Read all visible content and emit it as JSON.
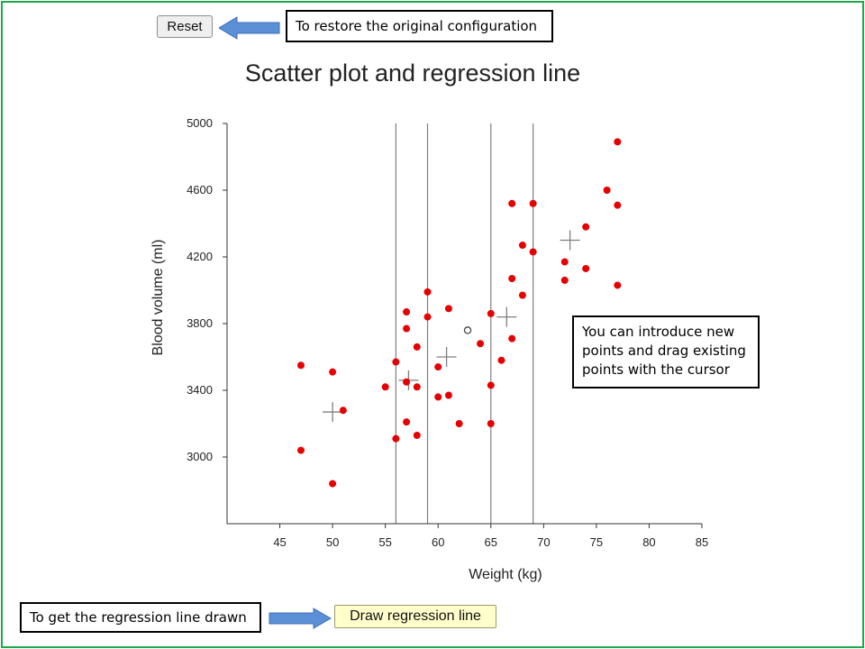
{
  "controls": {
    "reset_label": "Reset",
    "draw_regression_label": "Draw regression line"
  },
  "callouts": {
    "reset": "To restore the original configuration",
    "points": "You can introduce new points and drag existing points with the cursor",
    "regression": "To get the regression line drawn"
  },
  "colors": {
    "frame": "#1fa84a",
    "arrow": "#5b8fd6",
    "point": "#e60000",
    "marker": "#7f7f7f"
  },
  "chart_data": {
    "type": "scatter",
    "title": "Scatter plot and regression line",
    "xlabel": "Weight (kg)",
    "ylabel": "Blood volume (ml)",
    "xlim": [
      40,
      85
    ],
    "ylim": [
      2600,
      5000
    ],
    "xticks": [
      45,
      50,
      55,
      60,
      65,
      70,
      75,
      80,
      85
    ],
    "yticks": [
      3000,
      3400,
      3800,
      4200,
      4600,
      5000
    ],
    "grid": false,
    "points": [
      {
        "x": 47,
        "y": 3550
      },
      {
        "x": 47,
        "y": 3040
      },
      {
        "x": 50,
        "y": 3510
      },
      {
        "x": 50,
        "y": 2840
      },
      {
        "x": 51,
        "y": 3280
      },
      {
        "x": 55,
        "y": 3420
      },
      {
        "x": 56,
        "y": 3570
      },
      {
        "x": 56,
        "y": 3110
      },
      {
        "x": 57,
        "y": 3870
      },
      {
        "x": 57,
        "y": 3770
      },
      {
        "x": 57,
        "y": 3450
      },
      {
        "x": 57,
        "y": 3210
      },
      {
        "x": 58,
        "y": 3660
      },
      {
        "x": 58,
        "y": 3420
      },
      {
        "x": 58,
        "y": 3130
      },
      {
        "x": 59,
        "y": 3990
      },
      {
        "x": 59,
        "y": 3840
      },
      {
        "x": 60,
        "y": 3540
      },
      {
        "x": 60,
        "y": 3360
      },
      {
        "x": 61,
        "y": 3890
      },
      {
        "x": 61,
        "y": 3370
      },
      {
        "x": 62,
        "y": 3200
      },
      {
        "x": 64,
        "y": 3680
      },
      {
        "x": 65,
        "y": 3860
      },
      {
        "x": 65,
        "y": 3430
      },
      {
        "x": 65,
        "y": 3200
      },
      {
        "x": 66,
        "y": 3580
      },
      {
        "x": 67,
        "y": 4520
      },
      {
        "x": 67,
        "y": 4070
      },
      {
        "x": 67,
        "y": 3710
      },
      {
        "x": 68,
        "y": 4270
      },
      {
        "x": 68,
        "y": 3970
      },
      {
        "x": 69,
        "y": 4520
      },
      {
        "x": 69,
        "y": 4230
      },
      {
        "x": 72,
        "y": 4170
      },
      {
        "x": 72,
        "y": 4060
      },
      {
        "x": 74,
        "y": 4380
      },
      {
        "x": 74,
        "y": 4130
      },
      {
        "x": 76,
        "y": 4600
      },
      {
        "x": 77,
        "y": 4890
      },
      {
        "x": 77,
        "y": 4510
      },
      {
        "x": 77,
        "y": 4030
      }
    ],
    "vertical_lines": [
      56,
      59,
      65,
      69
    ],
    "group_means": [
      {
        "x": 50,
        "y": 3270
      },
      {
        "x": 57.2,
        "y": 3460
      },
      {
        "x": 60.8,
        "y": 3600
      },
      {
        "x": 66.5,
        "y": 3840
      },
      {
        "x": 72.5,
        "y": 4300
      }
    ],
    "overall_mean": {
      "x": 62.8,
      "y": 3760
    }
  }
}
